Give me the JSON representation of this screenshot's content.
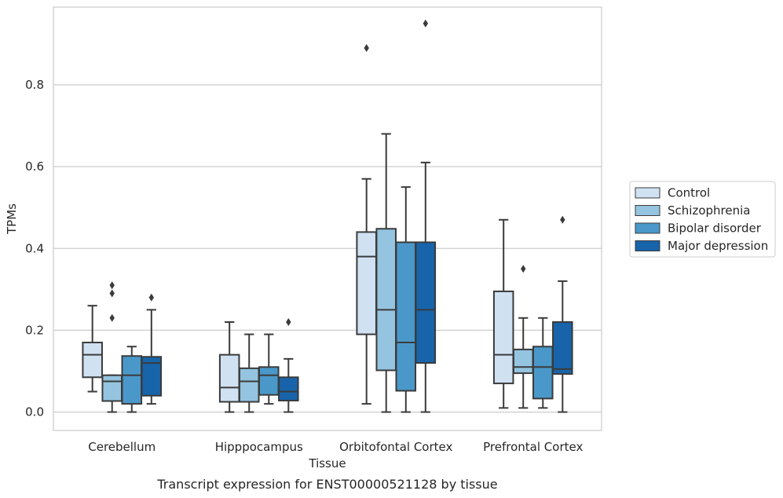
{
  "chart_data": {
    "type": "boxplot",
    "title": "",
    "caption": "Transcript expression for ENST00000521128 by tissue",
    "xlabel": "Tissue",
    "ylabel": "TPMs",
    "ylim": [
      -0.045,
      0.99
    ],
    "yticks": [
      0.0,
      0.2,
      0.4,
      0.6,
      0.8
    ],
    "ytick_labels": [
      "0.0",
      "0.2",
      "0.4",
      "0.6",
      "0.8"
    ],
    "grid": "horizontal",
    "legend_position": "right",
    "categories": [
      "Cerebellum",
      "Hipppocampus",
      "Orbitofontal Cortex",
      "Prefrontal Cortex"
    ],
    "series": [
      {
        "name": "Control",
        "color": "#d0e1f2",
        "boxes": [
          {
            "whislo": 0.05,
            "q1": 0.085,
            "med": 0.14,
            "q3": 0.17,
            "whishi": 0.26,
            "fliers": []
          },
          {
            "whislo": 0.0,
            "q1": 0.025,
            "med": 0.06,
            "q3": 0.14,
            "whishi": 0.22,
            "fliers": []
          },
          {
            "whislo": 0.02,
            "q1": 0.19,
            "med": 0.38,
            "q3": 0.44,
            "whishi": 0.57,
            "fliers": [
              0.89
            ]
          },
          {
            "whislo": 0.01,
            "q1": 0.07,
            "med": 0.14,
            "q3": 0.295,
            "whishi": 0.47,
            "fliers": []
          }
        ]
      },
      {
        "name": "Schizophrenia",
        "color": "#94c4df",
        "boxes": [
          {
            "whislo": 0.0,
            "q1": 0.027,
            "med": 0.075,
            "q3": 0.09,
            "whishi": 0.09,
            "fliers": [
              0.23,
              0.29,
              0.31
            ]
          },
          {
            "whislo": 0.0,
            "q1": 0.025,
            "med": 0.075,
            "q3": 0.107,
            "whishi": 0.19,
            "fliers": []
          },
          {
            "whislo": 0.0,
            "q1": 0.102,
            "med": 0.25,
            "q3": 0.448,
            "whishi": 0.68,
            "fliers": []
          },
          {
            "whislo": 0.01,
            "q1": 0.095,
            "med": 0.11,
            "q3": 0.153,
            "whishi": 0.23,
            "fliers": [
              0.35
            ]
          }
        ]
      },
      {
        "name": "Bipolar disorder",
        "color": "#4a98c9",
        "boxes": [
          {
            "whislo": 0.0,
            "q1": 0.02,
            "med": 0.09,
            "q3": 0.137,
            "whishi": 0.16,
            "fliers": []
          },
          {
            "whislo": 0.02,
            "q1": 0.042,
            "med": 0.09,
            "q3": 0.11,
            "whishi": 0.19,
            "fliers": []
          },
          {
            "whislo": 0.0,
            "q1": 0.052,
            "med": 0.17,
            "q3": 0.415,
            "whishi": 0.55,
            "fliers": []
          },
          {
            "whislo": 0.01,
            "q1": 0.033,
            "med": 0.11,
            "q3": 0.16,
            "whishi": 0.23,
            "fliers": []
          }
        ]
      },
      {
        "name": "Major depression",
        "color": "#1764ab",
        "boxes": [
          {
            "whislo": 0.02,
            "q1": 0.04,
            "med": 0.12,
            "q3": 0.135,
            "whishi": 0.25,
            "fliers": [
              0.28
            ]
          },
          {
            "whislo": 0.0,
            "q1": 0.028,
            "med": 0.05,
            "q3": 0.085,
            "whishi": 0.13,
            "fliers": [
              0.22
            ]
          },
          {
            "whislo": 0.0,
            "q1": 0.12,
            "med": 0.25,
            "q3": 0.415,
            "whishi": 0.61,
            "fliers": [
              0.95
            ]
          },
          {
            "whislo": 0.0,
            "q1": 0.093,
            "med": 0.105,
            "q3": 0.22,
            "whishi": 0.32,
            "fliers": [
              0.47
            ]
          }
        ]
      }
    ]
  }
}
